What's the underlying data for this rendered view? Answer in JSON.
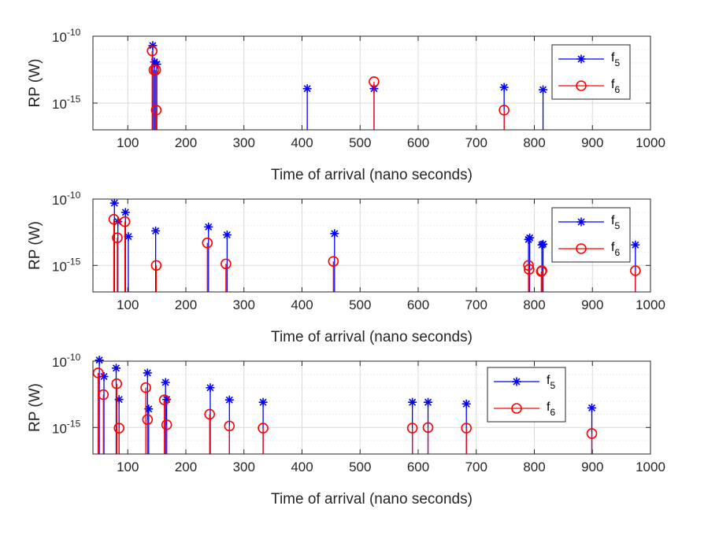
{
  "chart_data": [
    {
      "type": "stem",
      "xlabel": "Time of arrival (nano seconds)",
      "ylabel": "RP (W)",
      "xlim": [
        40,
        1000
      ],
      "xticks": [
        100,
        200,
        300,
        400,
        500,
        600,
        700,
        800,
        900,
        1000
      ],
      "yscale": "log",
      "ylim": [
        1e-17,
        1e-10
      ],
      "yticks": [
        {
          "exp": -10,
          "label": "10",
          "sup": "-10"
        },
        {
          "exp": -15,
          "label": "10",
          "sup": "-15"
        }
      ],
      "grid": true,
      "legend_position": "top-right",
      "series": [
        {
          "name": "f",
          "sub": "5",
          "color": "#0000ff",
          "marker": "asterisk",
          "x": [
            143,
            146,
            150,
            409,
            524,
            748,
            815
          ],
          "y": [
            2e-11,
            1.2e-12,
            8e-13,
            1.2e-14,
            1.2e-14,
            1.5e-14,
            1e-14
          ]
        },
        {
          "name": "f",
          "sub": "6",
          "color": "#ff0000",
          "marker": "circle",
          "x": [
            142,
            145,
            148,
            149,
            524,
            748
          ],
          "y": [
            8e-12,
            3e-13,
            3e-13,
            3e-16,
            4e-14,
            3e-16
          ]
        }
      ]
    },
    {
      "type": "stem",
      "xlabel": "Time of arrival (nano seconds)",
      "ylabel": "RP (W)",
      "xlim": [
        40,
        1000
      ],
      "xticks": [
        100,
        200,
        300,
        400,
        500,
        600,
        700,
        800,
        900,
        1000
      ],
      "yscale": "log",
      "ylim": [
        1e-17,
        1e-10
      ],
      "yticks": [
        {
          "exp": -10,
          "label": "10",
          "sup": "-10"
        },
        {
          "exp": -15,
          "label": "10",
          "sup": "-15"
        }
      ],
      "grid": true,
      "legend_position": "top-right",
      "series": [
        {
          "name": "f",
          "sub": "5",
          "color": "#0000ff",
          "marker": "asterisk",
          "x": [
            77,
            83,
            96,
            101,
            148,
            239,
            271,
            456,
            790,
            792,
            813,
            815,
            974
          ],
          "y": [
            5e-11,
            2e-12,
            1e-11,
            1.5e-13,
            4e-13,
            8e-13,
            2e-13,
            2.5e-13,
            9e-14,
            1.2e-13,
            3.5e-14,
            4e-14,
            3.5e-14
          ]
        },
        {
          "name": "f",
          "sub": "6",
          "color": "#ff0000",
          "marker": "circle",
          "x": [
            76,
            82,
            95,
            149,
            237,
            269,
            454,
            790,
            791,
            812,
            813,
            974
          ],
          "y": [
            3e-12,
            1.2e-13,
            2e-12,
            1e-15,
            5e-14,
            1.3e-15,
            2e-15,
            1e-15,
            5e-16,
            3.5e-16,
            4e-16,
            4e-16
          ]
        }
      ]
    },
    {
      "type": "stem",
      "xlabel": "Time of arrival (nano seconds)",
      "ylabel": "RP (W)",
      "xlim": [
        40,
        1000
      ],
      "xticks": [
        100,
        200,
        300,
        400,
        500,
        600,
        700,
        800,
        900,
        1000
      ],
      "yscale": "log",
      "ylim": [
        1e-17,
        1e-10
      ],
      "yticks": [
        {
          "exp": -10,
          "label": "10",
          "sup": "-10"
        },
        {
          "exp": -15,
          "label": "10",
          "sup": "-15"
        }
      ],
      "grid": true,
      "legend_position": "top-right",
      "series": [
        {
          "name": "f",
          "sub": "5",
          "color": "#0000ff",
          "marker": "asterisk",
          "x": [
            51,
            59,
            80,
            85,
            134,
            136,
            165,
            167,
            242,
            275,
            333,
            590,
            617,
            683,
            899
          ],
          "y": [
            1.2e-10,
            7e-12,
            3e-11,
            1.3e-13,
            1.3e-11,
            2.5e-14,
            2.5e-12,
            1.3e-13,
            1e-12,
            1.2e-13,
            8e-14,
            8e-14,
            8e-14,
            6e-14,
            3e-14
          ]
        },
        {
          "name": "f",
          "sub": "6",
          "color": "#ff0000",
          "marker": "circle",
          "x": [
            49,
            58,
            81,
            85,
            131,
            134,
            163,
            167,
            241,
            275,
            333,
            590,
            617,
            683,
            899
          ],
          "y": [
            1.3e-11,
            3e-13,
            2e-12,
            9e-16,
            1e-12,
            4e-15,
            1.2e-13,
            1.6e-15,
            1e-14,
            1.3e-15,
            9e-16,
            9e-16,
            1e-15,
            9e-16,
            3.5e-16
          ]
        }
      ]
    }
  ]
}
